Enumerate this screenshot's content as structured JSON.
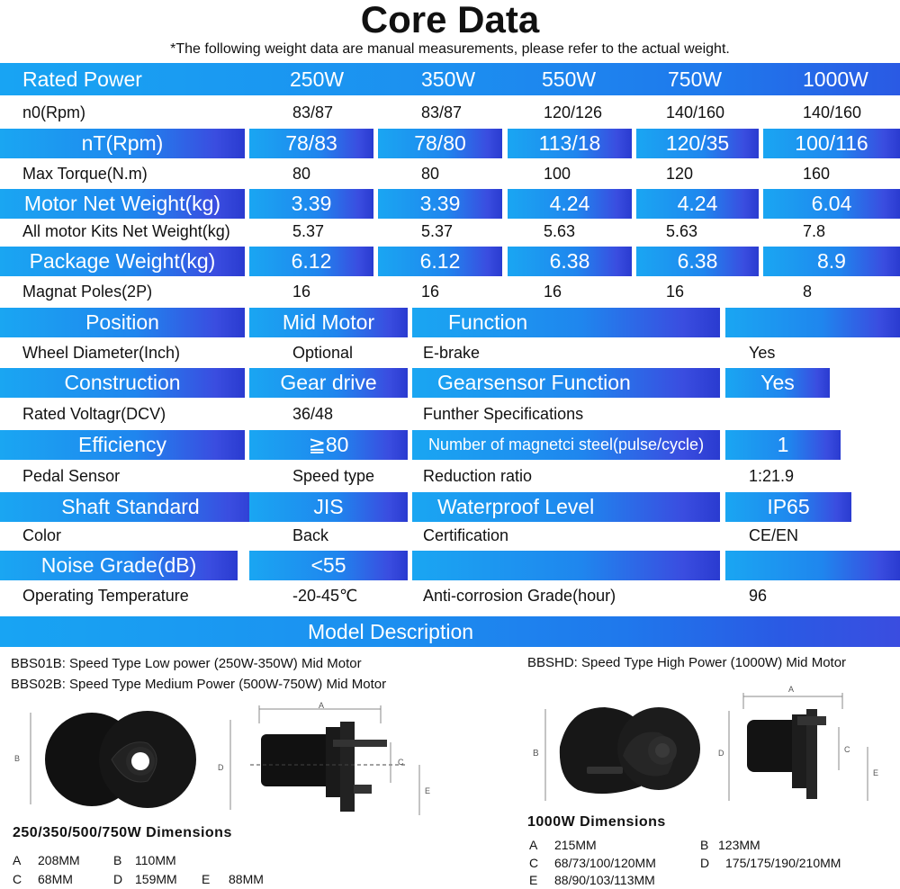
{
  "title": "Core Data",
  "subtitle": "*The following weight data are manual measurements, please refer to the actual weight.",
  "spec_table": {
    "rated_power": [
      "Rated Power",
      "250W",
      "350W",
      "550W",
      "750W",
      "1000W"
    ],
    "n0": [
      "n0(Rpm)",
      "83/87",
      "83/87",
      "120/126",
      "140/160",
      "140/160"
    ],
    "nT": [
      "nT(Rpm)",
      "78/83",
      "78/80",
      "113/18",
      "120/35",
      "100/116"
    ],
    "max_torque": [
      "Max Torque(N.m)",
      "80",
      "80",
      "100",
      "120",
      "160"
    ],
    "motor_net_weight": [
      "Motor Net Weight(kg)",
      "3.39",
      "3.39",
      "4.24",
      "4.24",
      "6.04"
    ],
    "kit_net_weight": [
      "All motor Kits Net Weight(kg)",
      "5.37",
      "5.37",
      "5.63",
      "5.63",
      "7.8"
    ],
    "package_weight": [
      "Package Weight(kg)",
      "6.12",
      "6.12",
      "6.38",
      "6.38",
      "8.9"
    ],
    "magnet_poles": [
      "Magnat Poles(2P)",
      "16",
      "16",
      "16",
      "16",
      "8"
    ]
  },
  "feature_table": {
    "r1": [
      "Position",
      "Mid Motor",
      "Function",
      ""
    ],
    "r2": [
      "Wheel Diameter(Inch)",
      "Optional",
      "E-brake",
      "Yes"
    ],
    "r3": [
      "Construction",
      "Gear drive",
      "Gearsensor Function",
      "Yes"
    ],
    "r4": [
      "Rated Voltagr(DCV)",
      "36/48",
      "Funther Specifications",
      ""
    ],
    "r5": [
      "Efficiency",
      "≧80",
      "Number of magnetci steel(pulse/cycle)",
      "1"
    ],
    "r6": [
      "Pedal Sensor",
      "Speed type",
      "Reduction ratio",
      "1:21.9"
    ],
    "r7": [
      "Shaft Standard",
      "JIS",
      "Waterproof Level",
      "IP65"
    ],
    "r8": [
      "Color",
      "Back",
      "Certification",
      "CE/EN"
    ],
    "r9": [
      "Noise Grade(dB)",
      "<55",
      "",
      ""
    ],
    "r10": [
      "Operating Temperature",
      "-20-45℃",
      "Anti-corrosion Grade(hour)",
      "96"
    ]
  },
  "model_description": {
    "header": "Model Description",
    "bbs01b": "BBS01B: Speed Type Low power (250W-350W) Mid Motor",
    "bbs02b": "BBS02B: Speed Type Medium Power (500W-750W) Mid Motor",
    "bbshd": "BBSHD: Speed Type High Power (1000W) Mid Motor",
    "left_dims": {
      "heading": "250/350/500/750W  Dimensions",
      "labels": [
        "A",
        "B",
        "C",
        "D",
        "E"
      ],
      "values": [
        "208MM",
        "110MM",
        "68MM",
        "159MM",
        "88MM"
      ]
    },
    "right_dims": {
      "heading": "1000W  Dimensions",
      "labels": [
        "A",
        "B",
        "C",
        "D",
        "E"
      ],
      "values": [
        "215MM",
        "123MM",
        "68/73/100/120MM",
        "175/175/190/210MM",
        "88/90/103/113MM"
      ]
    },
    "drawing_labels": {
      "a": "A",
      "b": "B",
      "c": "C",
      "d": "D",
      "e": "E"
    }
  },
  "colors": {
    "header_blue": "#1f86ee",
    "band_blue": "#1aa6f2",
    "accent_indigo": "#3a4de0"
  }
}
